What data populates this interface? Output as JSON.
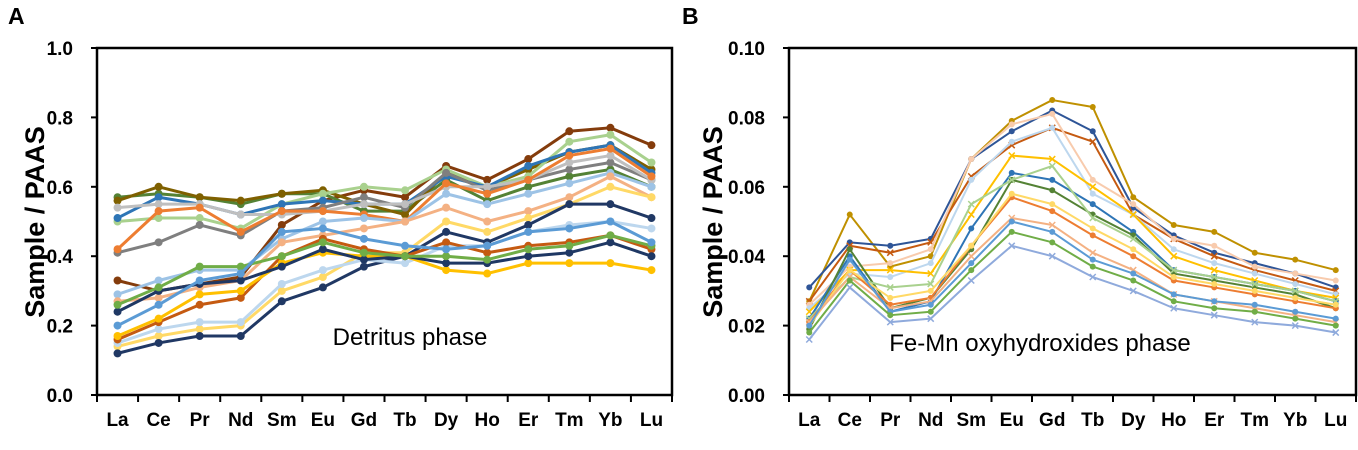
{
  "chart_data": [
    {
      "type": "line",
      "panel_label": "A",
      "annotation": "Detritus phase",
      "ylabel": "Sample / PAAS",
      "xlabel": "",
      "categories": [
        "La",
        "Ce",
        "Pr",
        "Nd",
        "Sm",
        "Eu",
        "Gd",
        "Tb",
        "Dy",
        "Ho",
        "Er",
        "Tm",
        "Yb",
        "Lu"
      ],
      "ylim": [
        0,
        1.0
      ],
      "yticks": [
        "0.0",
        "0.2",
        "0.4",
        "0.6",
        "0.8",
        "1.0"
      ],
      "ytick_values": [
        0,
        0.2,
        0.4,
        0.6,
        0.8,
        1.0
      ],
      "marker": "circle",
      "series": [
        {
          "color": "#843c0c",
          "values": [
            0.33,
            0.3,
            0.32,
            0.34,
            0.49,
            0.56,
            0.59,
            0.57,
            0.66,
            0.62,
            0.68,
            0.76,
            0.77,
            0.72
          ]
        },
        {
          "color": "#548235",
          "values": [
            0.57,
            0.58,
            0.57,
            0.55,
            0.58,
            0.58,
            0.53,
            0.53,
            0.62,
            0.56,
            0.6,
            0.63,
            0.65,
            0.6
          ]
        },
        {
          "color": "#7f6000",
          "values": [
            0.56,
            0.6,
            0.57,
            0.56,
            0.58,
            0.59,
            0.55,
            0.52,
            0.64,
            0.6,
            0.65,
            0.7,
            0.72,
            0.65
          ]
        },
        {
          "color": "#a9d18e",
          "values": [
            0.5,
            0.51,
            0.51,
            0.48,
            0.55,
            0.58,
            0.6,
            0.59,
            0.65,
            0.6,
            0.63,
            0.73,
            0.75,
            0.67
          ]
        },
        {
          "color": "#2e75b6",
          "values": [
            0.51,
            0.57,
            0.55,
            0.52,
            0.55,
            0.56,
            0.55,
            0.55,
            0.63,
            0.6,
            0.66,
            0.7,
            0.72,
            0.64
          ]
        },
        {
          "color": "#7f7f7f",
          "values": [
            0.41,
            0.44,
            0.49,
            0.46,
            0.53,
            0.54,
            0.57,
            0.54,
            0.64,
            0.59,
            0.62,
            0.65,
            0.67,
            0.62
          ]
        },
        {
          "color": "#bfbfbf",
          "values": [
            0.54,
            0.55,
            0.55,
            0.52,
            0.52,
            0.53,
            0.55,
            0.55,
            0.6,
            0.6,
            0.62,
            0.67,
            0.69,
            0.62
          ]
        },
        {
          "color": "#ed7d31",
          "values": [
            0.42,
            0.53,
            0.54,
            0.47,
            0.53,
            0.53,
            0.52,
            0.5,
            0.61,
            0.58,
            0.62,
            0.69,
            0.71,
            0.63
          ]
        },
        {
          "color": "#9dc3e6",
          "values": [
            0.29,
            0.33,
            0.36,
            0.36,
            0.45,
            0.5,
            0.51,
            0.5,
            0.58,
            0.55,
            0.58,
            0.61,
            0.64,
            0.6
          ]
        },
        {
          "color": "#f4b183",
          "values": [
            0.27,
            0.28,
            0.31,
            0.33,
            0.44,
            0.46,
            0.48,
            0.5,
            0.54,
            0.5,
            0.53,
            0.57,
            0.63,
            0.57
          ]
        },
        {
          "color": "#ffd966",
          "values": [
            0.14,
            0.17,
            0.19,
            0.2,
            0.3,
            0.34,
            0.41,
            0.41,
            0.5,
            0.47,
            0.51,
            0.55,
            0.6,
            0.57
          ]
        },
        {
          "color": "#203864",
          "values": [
            0.12,
            0.15,
            0.17,
            0.17,
            0.27,
            0.31,
            0.37,
            0.4,
            0.47,
            0.44,
            0.49,
            0.55,
            0.55,
            0.51
          ]
        },
        {
          "color": "#bdd7ee",
          "values": [
            0.15,
            0.19,
            0.21,
            0.21,
            0.32,
            0.36,
            0.39,
            0.38,
            0.43,
            0.43,
            0.47,
            0.49,
            0.5,
            0.48
          ]
        },
        {
          "color": "#c55a11",
          "values": [
            0.16,
            0.21,
            0.26,
            0.28,
            0.4,
            0.45,
            0.42,
            0.4,
            0.44,
            0.41,
            0.43,
            0.44,
            0.46,
            0.42
          ]
        },
        {
          "color": "#ffc000",
          "values": [
            0.17,
            0.22,
            0.29,
            0.3,
            0.38,
            0.41,
            0.4,
            0.4,
            0.36,
            0.35,
            0.38,
            0.38,
            0.38,
            0.36
          ]
        },
        {
          "color": "#1f3864",
          "values": [
            0.24,
            0.3,
            0.32,
            0.33,
            0.37,
            0.42,
            0.39,
            0.4,
            0.38,
            0.38,
            0.4,
            0.41,
            0.44,
            0.4
          ]
        },
        {
          "color": "#70ad47",
          "values": [
            0.26,
            0.31,
            0.37,
            0.37,
            0.4,
            0.44,
            0.41,
            0.4,
            0.4,
            0.39,
            0.42,
            0.43,
            0.46,
            0.43
          ]
        },
        {
          "color": "#5b9bd5",
          "values": [
            0.2,
            0.26,
            0.33,
            0.35,
            0.47,
            0.48,
            0.45,
            0.43,
            0.42,
            0.43,
            0.47,
            0.48,
            0.5,
            0.44
          ]
        }
      ]
    },
    {
      "type": "line",
      "panel_label": "B",
      "annotation": "Fe-Mn oxyhydroxides phase",
      "ylabel": "Sample / PAAS",
      "xlabel": "",
      "categories": [
        "La",
        "Ce",
        "Pr",
        "Nd",
        "Sm",
        "Eu",
        "Gd",
        "Tb",
        "Dy",
        "Ho",
        "Er",
        "Tm",
        "Yb",
        "Lu"
      ],
      "ylim": [
        0,
        0.1
      ],
      "yticks": [
        "0.00",
        "0.02",
        "0.04",
        "0.06",
        "0.08",
        "0.10"
      ],
      "ytick_values": [
        0,
        0.02,
        0.04,
        0.06,
        0.08,
        0.1
      ],
      "marker": "mixed",
      "series": [
        {
          "color": "#bf9000",
          "values": [
            0.027,
            0.052,
            0.037,
            0.04,
            0.068,
            0.079,
            0.085,
            0.083,
            0.057,
            0.049,
            0.047,
            0.041,
            0.039,
            0.036
          ]
        },
        {
          "color": "#2e5597",
          "values": [
            0.031,
            0.044,
            0.043,
            0.045,
            0.068,
            0.076,
            0.082,
            0.076,
            0.054,
            0.046,
            0.041,
            0.038,
            0.035,
            0.031
          ]
        },
        {
          "color": "#c55a11",
          "values": [
            0.027,
            0.043,
            0.041,
            0.044,
            0.063,
            0.072,
            0.077,
            0.073,
            0.052,
            0.045,
            0.04,
            0.036,
            0.033,
            0.03
          ]
        },
        {
          "color": "#f8cbad",
          "values": [
            0.026,
            0.037,
            0.038,
            0.042,
            0.068,
            0.078,
            0.081,
            0.062,
            0.055,
            0.045,
            0.043,
            0.037,
            0.035,
            0.033
          ]
        },
        {
          "color": "#bdd7ee",
          "values": [
            0.025,
            0.035,
            0.034,
            0.038,
            0.062,
            0.073,
            0.077,
            0.058,
            0.052,
            0.042,
            0.038,
            0.035,
            0.032,
            0.029
          ]
        },
        {
          "color": "#ffc000",
          "values": [
            0.024,
            0.036,
            0.036,
            0.035,
            0.052,
            0.069,
            0.068,
            0.06,
            0.052,
            0.04,
            0.036,
            0.033,
            0.03,
            0.028
          ]
        },
        {
          "color": "#2e75b6",
          "values": [
            0.022,
            0.04,
            0.024,
            0.027,
            0.048,
            0.064,
            0.062,
            0.055,
            0.047,
            0.036,
            0.034,
            0.032,
            0.03,
            0.027
          ]
        },
        {
          "color": "#548235",
          "values": [
            0.019,
            0.042,
            0.025,
            0.028,
            0.042,
            0.062,
            0.059,
            0.052,
            0.046,
            0.035,
            0.033,
            0.031,
            0.029,
            0.025
          ]
        },
        {
          "color": "#a9d18e",
          "values": [
            0.022,
            0.034,
            0.031,
            0.032,
            0.055,
            0.062,
            0.066,
            0.051,
            0.045,
            0.036,
            0.034,
            0.032,
            0.03,
            0.027
          ]
        },
        {
          "color": "#ed7d31",
          "values": [
            0.021,
            0.036,
            0.026,
            0.028,
            0.043,
            0.057,
            0.053,
            0.046,
            0.04,
            0.033,
            0.031,
            0.029,
            0.027,
            0.025
          ]
        },
        {
          "color": "#ffd966",
          "values": [
            0.02,
            0.036,
            0.028,
            0.03,
            0.043,
            0.058,
            0.055,
            0.048,
            0.042,
            0.034,
            0.032,
            0.03,
            0.028,
            0.026
          ]
        },
        {
          "color": "#f4b183",
          "values": [
            0.021,
            0.034,
            0.025,
            0.027,
            0.04,
            0.051,
            0.049,
            0.041,
            0.036,
            0.029,
            0.027,
            0.025,
            0.023,
            0.021
          ]
        },
        {
          "color": "#5b9bd5",
          "values": [
            0.02,
            0.039,
            0.024,
            0.026,
            0.038,
            0.05,
            0.047,
            0.039,
            0.035,
            0.029,
            0.027,
            0.026,
            0.024,
            0.022
          ]
        },
        {
          "color": "#70ad47",
          "values": [
            0.018,
            0.033,
            0.023,
            0.024,
            0.036,
            0.047,
            0.044,
            0.037,
            0.033,
            0.027,
            0.025,
            0.024,
            0.022,
            0.02
          ]
        },
        {
          "color": "#8faadc",
          "values": [
            0.016,
            0.031,
            0.021,
            0.022,
            0.033,
            0.043,
            0.04,
            0.034,
            0.03,
            0.025,
            0.023,
            0.021,
            0.02,
            0.018
          ]
        }
      ]
    }
  ]
}
